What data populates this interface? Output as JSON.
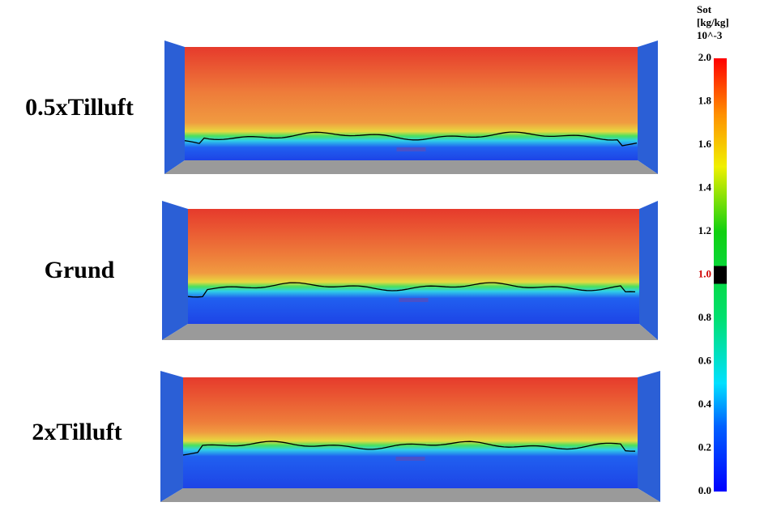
{
  "panels": [
    {
      "label": "0.5xTilluft"
    },
    {
      "label": "Grund"
    },
    {
      "label": "2xTilluft"
    }
  ],
  "colorbar": {
    "title": [
      "Sot",
      "[kg/kg]",
      "10^-3"
    ],
    "lim": [
      0,
      2
    ],
    "ticks": [
      {
        "value": 0,
        "label": "0.0"
      },
      {
        "value": 0.2,
        "label": "0.2"
      },
      {
        "value": 0.4,
        "label": "0.4"
      },
      {
        "value": 0.6,
        "label": "0.6"
      },
      {
        "value": 0.8,
        "label": "0.8"
      },
      {
        "value": 1,
        "label": "1.0"
      },
      {
        "value": 1.2,
        "label": "1.2"
      },
      {
        "value": 1.4,
        "label": "1.4"
      },
      {
        "value": 1.6,
        "label": "1.6"
      },
      {
        "value": 1.8,
        "label": "1.8"
      },
      {
        "value": 2,
        "label": "2.0"
      }
    ],
    "highlight": 1
  }
}
